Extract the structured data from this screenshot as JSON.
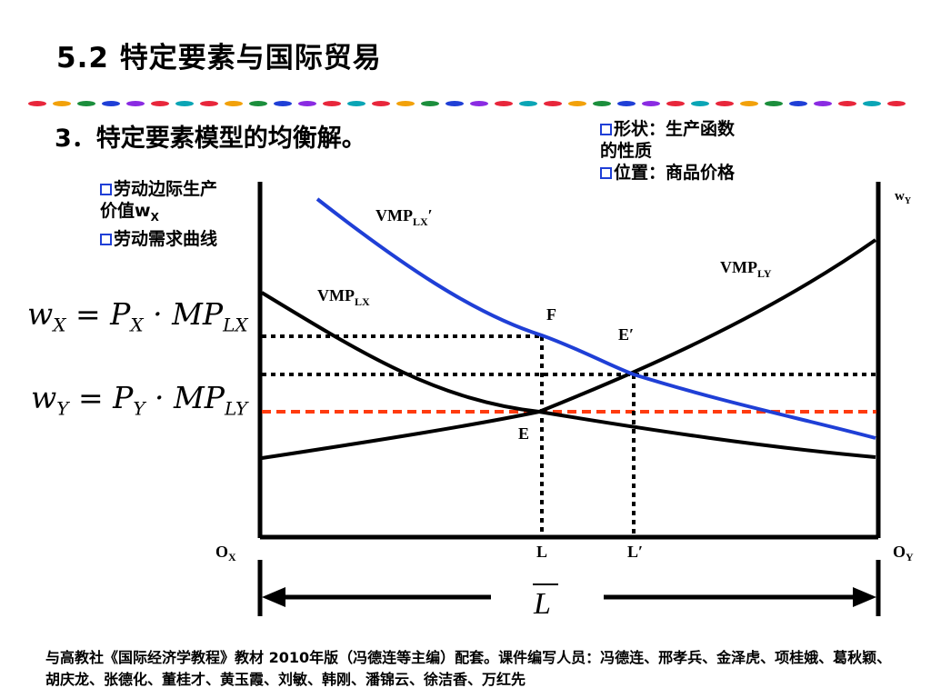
{
  "slide": {
    "title": "5.2  特定要素与国际贸易",
    "subheading": "3．特定要素模型的均衡解。"
  },
  "notes_right": {
    "line1": "形状：生产函数",
    "line2": "的性质",
    "line3": "位置：商品价格"
  },
  "notes_left": {
    "line1": "劳动边际生产",
    "line2_prefix": "价值w",
    "line2_sub": "X",
    "line3": "劳动需求曲线"
  },
  "formulas": {
    "wx": {
      "lhs": "w",
      "lhs_sub": "X",
      "p": "P",
      "p_sub": "X",
      "mp": "MP",
      "mp_sub": "LX"
    },
    "wy": {
      "lhs": "w",
      "lhs_sub": "Y",
      "p": "P",
      "p_sub": "Y",
      "mp": "MP",
      "mp_sub": "LY"
    }
  },
  "diagram": {
    "curve_labels": {
      "vmp_lx_prime": {
        "main": "VMP",
        "sub": "LX",
        "prime": "′"
      },
      "vmp_ly": {
        "main": "VMP",
        "sub": "LY"
      },
      "vmp_lx": {
        "main": "VMP",
        "sub": "LX"
      }
    },
    "points": {
      "F": "F",
      "E_prime": "E′",
      "E": "E"
    },
    "axis_labels": {
      "wy": {
        "main": "w",
        "sub": "Y"
      },
      "ox": {
        "main": "O",
        "sub": "X"
      },
      "oy": {
        "main": "O",
        "sub": "Y"
      },
      "L": "L",
      "L_prime": "L′",
      "L_bar": "L"
    },
    "colors": {
      "curve_black": "#000000",
      "curve_blue": "#1f3fd6",
      "dotted_red": "#ff3b0f"
    }
  },
  "footer": "与高教社《国际经济学教程》教材 2010年版（冯德连等主编）配套。课件编写人员：冯德连、邢孝兵、金泽虎、项桂娥、葛秋颖、胡庆龙、张德化、董桂才、黄玉霞、刘敏、韩刚、潘锦云、徐洁香、万红先"
}
